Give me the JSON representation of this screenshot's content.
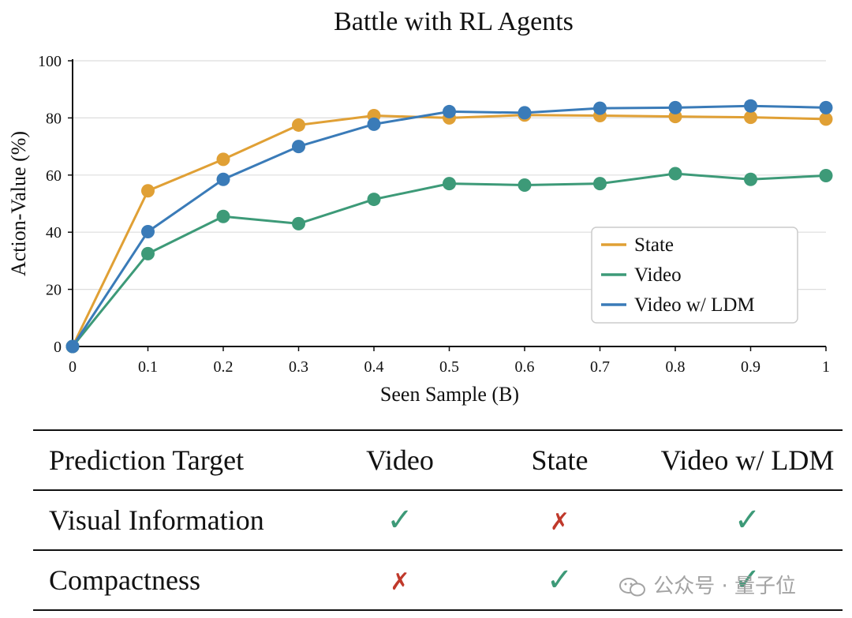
{
  "chart_data": {
    "type": "line",
    "title": "Battle with RL Agents",
    "xlabel": "Seen Sample (B)",
    "ylabel": "Action-Value (%)",
    "x": [
      0,
      0.1,
      0.2,
      0.3,
      0.4,
      0.5,
      0.6,
      0.7,
      0.8,
      0.9,
      1
    ],
    "x_tick_labels": [
      "0",
      "0.1",
      "0.2",
      "0.3",
      "0.4",
      "0.5",
      "0.6",
      "0.7",
      "0.8",
      "0.9",
      "1"
    ],
    "y_ticks": [
      0,
      20,
      40,
      60,
      80,
      100
    ],
    "xlim": [
      0,
      1
    ],
    "ylim": [
      0,
      100
    ],
    "grid": "horizontal",
    "legend_position": "right-middle",
    "series": [
      {
        "name": "State",
        "color": "#e0a035",
        "values": [
          0,
          54.5,
          65.5,
          77.5,
          80.8,
          80.0,
          81.0,
          80.8,
          80.5,
          80.2,
          79.6
        ]
      },
      {
        "name": "Video",
        "color": "#3d9a78",
        "values": [
          0,
          32.5,
          45.5,
          43.0,
          51.5,
          57.0,
          56.5,
          57.0,
          60.5,
          58.5,
          59.8
        ]
      },
      {
        "name": "Video w/ LDM",
        "color": "#3a7bb8",
        "values": [
          0,
          40.2,
          58.5,
          70.0,
          77.8,
          82.2,
          81.8,
          83.4,
          83.6,
          84.2,
          83.6
        ]
      }
    ]
  },
  "table": {
    "headers": [
      "Prediction Target",
      "Video",
      "State",
      "Video w/ LDM"
    ],
    "rows": [
      {
        "label": "Visual Information",
        "cells": [
          {
            "mark": "check",
            "symbol": "✓"
          },
          {
            "mark": "cross",
            "symbol": "✗"
          },
          {
            "mark": "check",
            "symbol": "✓"
          }
        ]
      },
      {
        "label": "Compactness",
        "cells": [
          {
            "mark": "cross",
            "symbol": "✗"
          },
          {
            "mark": "check",
            "symbol": "✓"
          },
          {
            "mark": "check",
            "symbol": "✓"
          }
        ]
      }
    ]
  },
  "watermark": {
    "text": "公众号 · 量子位",
    "icon": "wechat-icon"
  }
}
